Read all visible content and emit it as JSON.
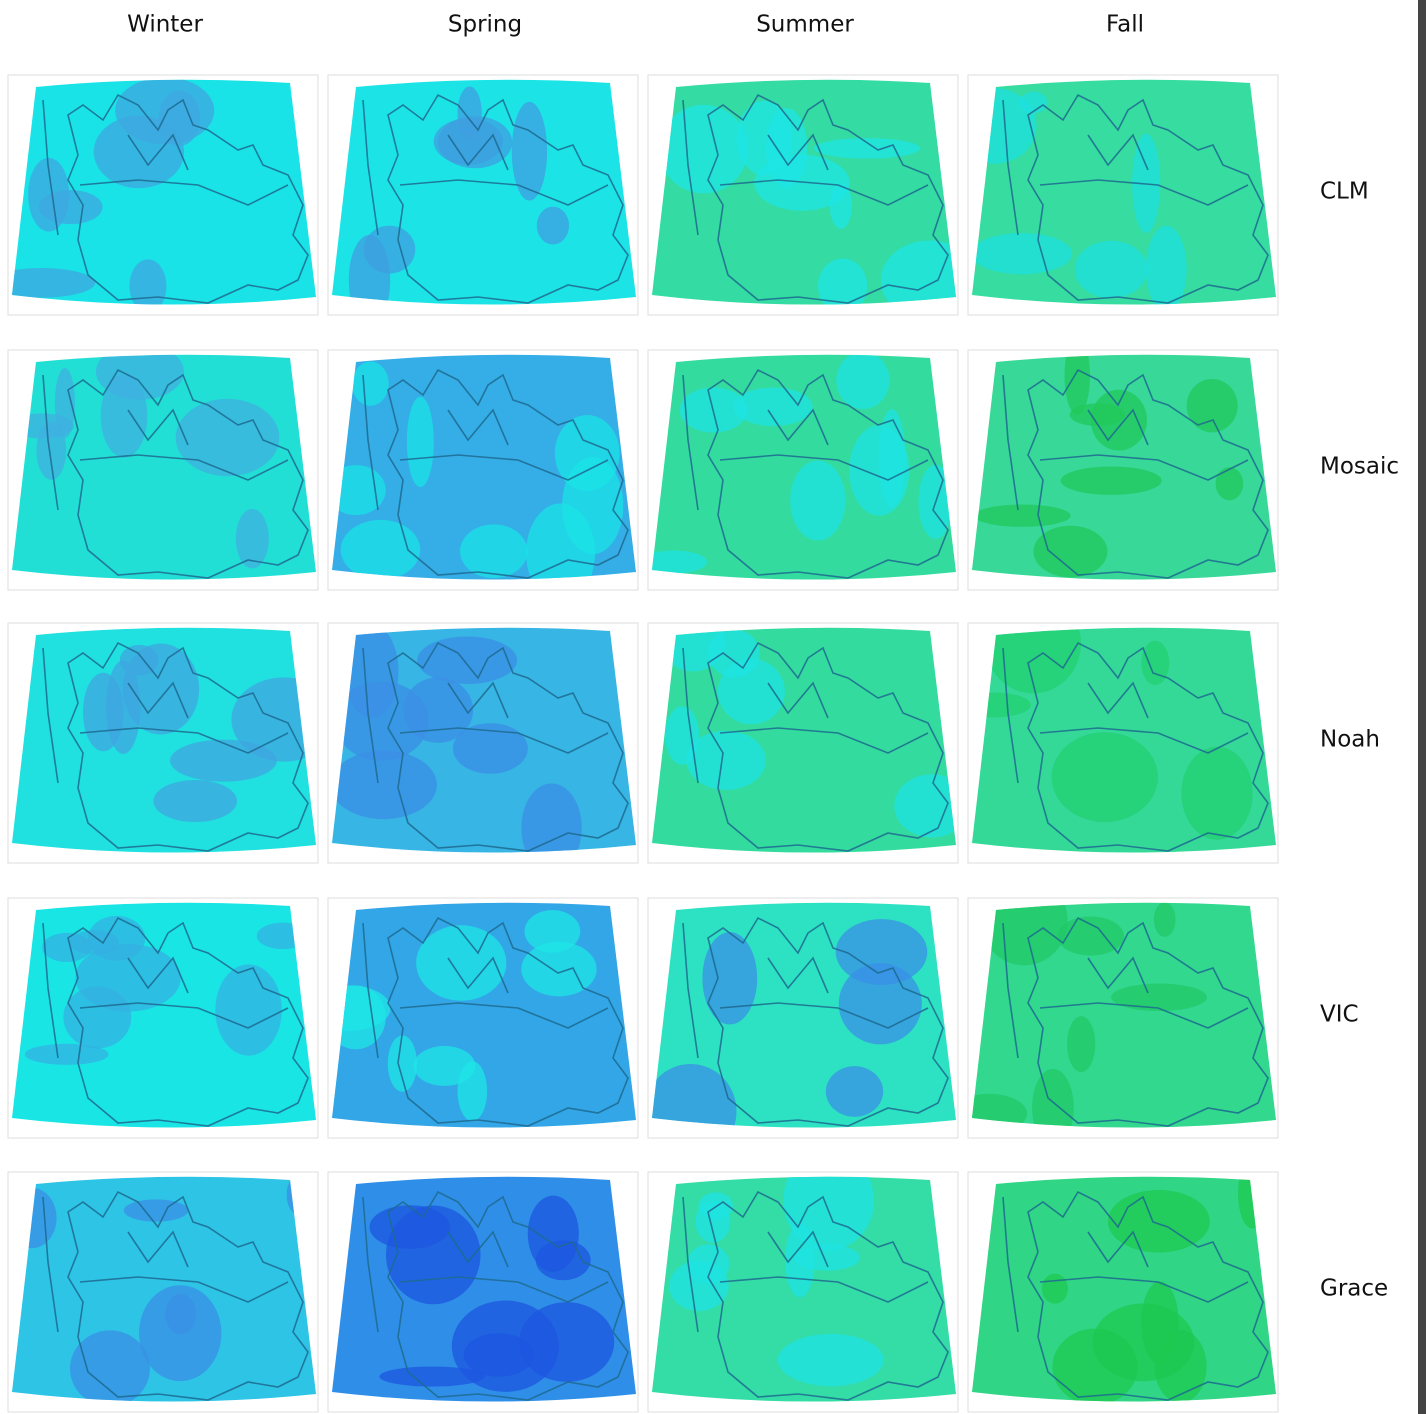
{
  "columns": [
    "Winter",
    "Spring",
    "Summer",
    "Fall"
  ],
  "rows": [
    "CLM",
    "Mosaic",
    "Noah",
    "VIC",
    "Grace"
  ]
}
